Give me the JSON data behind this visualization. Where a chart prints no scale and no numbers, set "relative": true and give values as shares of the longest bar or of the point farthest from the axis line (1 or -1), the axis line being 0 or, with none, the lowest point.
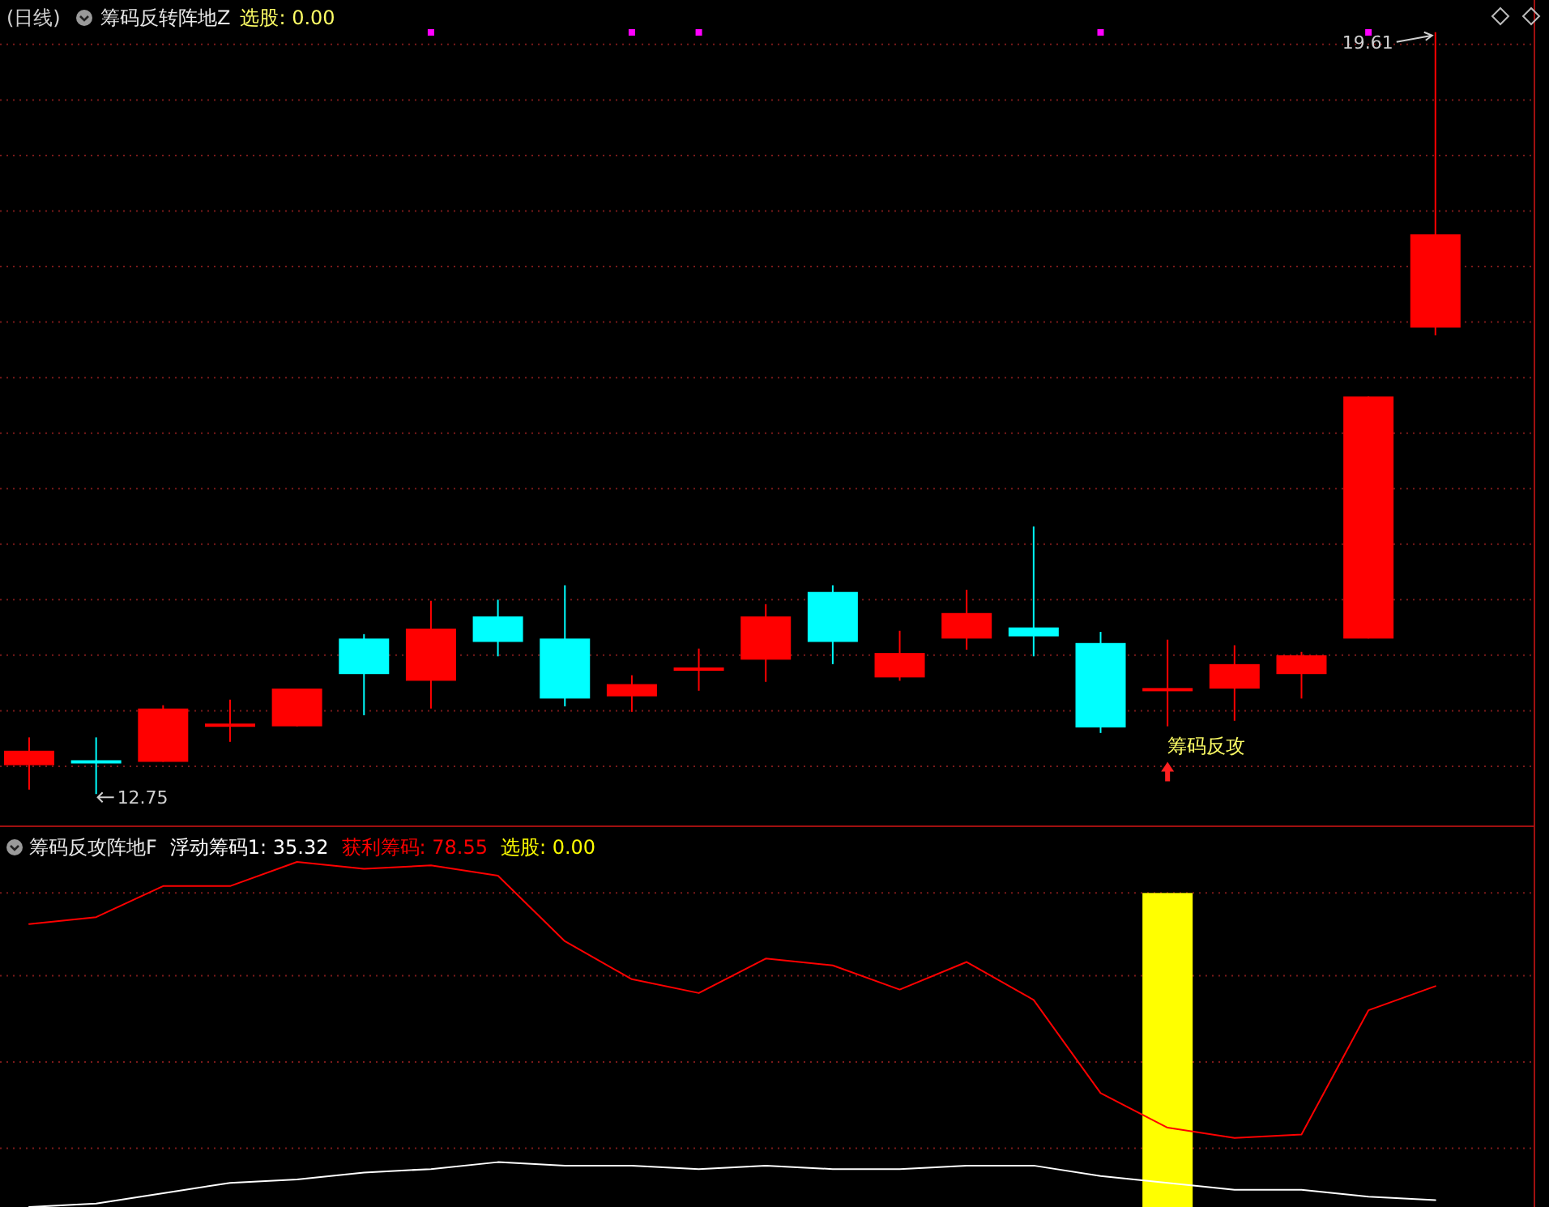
{
  "chart_data": [
    {
      "type": "candlestick",
      "title": "(日线)",
      "subtitle": "筹码反转阵地Z",
      "categories": [
        null,
        null,
        null,
        null,
        null,
        null,
        null,
        null,
        null,
        null,
        null,
        null,
        null,
        null,
        null,
        null,
        null,
        null,
        null,
        null,
        null,
        null
      ],
      "ylim": [
        12.46,
        19.9
      ],
      "yticks": [
        {
          "value": 13,
          "label": null
        },
        {
          "value": 13.5,
          "label": null
        },
        {
          "value": 14,
          "label": null
        },
        {
          "value": 14.5,
          "label": null
        },
        {
          "value": 15,
          "label": null
        },
        {
          "value": 15.5,
          "label": null
        },
        {
          "value": 16,
          "label": null
        },
        {
          "value": 16.5,
          "label": null
        },
        {
          "value": 17,
          "label": null
        },
        {
          "value": 17.5,
          "label": null
        },
        {
          "value": 18,
          "label": null
        },
        {
          "value": 18.5,
          "label": null
        },
        {
          "value": 19,
          "label": null
        },
        {
          "value": 19.5,
          "label": null
        }
      ],
      "grid": "y",
      "ohlc": [
        [
          13.01,
          13.26,
          12.79,
          13.14
        ],
        [
          13.04,
          13.26,
          12.75,
          13.02
        ],
        [
          13.04,
          13.55,
          13.04,
          13.52
        ],
        [
          13.36,
          13.6,
          13.22,
          13.37
        ],
        [
          13.36,
          13.7,
          13.36,
          13.7
        ],
        [
          14.15,
          14.19,
          13.46,
          13.83
        ],
        [
          13.77,
          14.49,
          13.52,
          14.24
        ],
        [
          14.35,
          14.5,
          13.99,
          14.12
        ],
        [
          14.15,
          14.63,
          13.54,
          13.61
        ],
        [
          13.63,
          13.82,
          13.49,
          13.74
        ],
        [
          13.86,
          14.06,
          13.68,
          13.89
        ],
        [
          13.96,
          14.46,
          13.76,
          14.35
        ],
        [
          14.57,
          14.63,
          13.92,
          14.12
        ],
        [
          13.8,
          14.22,
          13.77,
          14.02
        ],
        [
          14.15,
          14.59,
          14.05,
          14.38
        ],
        [
          14.25,
          15.16,
          13.99,
          14.17
        ],
        [
          14.11,
          14.21,
          13.3,
          13.35
        ],
        [
          13.68,
          14.14,
          13.36,
          13.69
        ],
        [
          13.7,
          14.09,
          13.41,
          13.92
        ],
        [
          13.83,
          14.03,
          13.61,
          14
        ],
        [
          14.15,
          16.33,
          14.15,
          16.33
        ],
        [
          16.95,
          19.61,
          16.88,
          17.79
        ]
      ],
      "colors": [
        "#ff0000",
        "#00ffff",
        "#ff0000",
        "#ff0000",
        "#ff0000",
        "#00ffff",
        "#ff0000",
        "#00ffff",
        "#00ffff",
        "#ff0000",
        "#ff0000",
        "#ff0000",
        "#00ffff",
        "#ff0000",
        "#ff0000",
        "#00ffff",
        "#00ffff",
        "#ff0000",
        "#ff0000",
        "#ff0000",
        "#ff0000",
        "#ff0000"
      ],
      "annotations": [
        "选股: 0.00",
        "19.61",
        "12.75",
        "筹码反攻"
      ]
    },
    {
      "type": "line",
      "title": "筹码反攻阵地F",
      "relative": true,
      "ref_lines": [
        {
          "axis": "y",
          "value": 0.17,
          "color": "#7a1a1a",
          "line_style": "dotted"
        },
        {
          "axis": "y",
          "value": 0.42,
          "color": "#7a1a1a",
          "line_style": "dotted"
        },
        {
          "axis": "y",
          "value": 0.67,
          "color": "#7a1a1a",
          "line_style": "dotted"
        },
        {
          "axis": "y",
          "value": 0.91,
          "color": "#7a1a1a",
          "line_style": "dotted"
        }
      ],
      "categories": [
        null,
        null,
        null,
        null,
        null,
        null,
        null,
        null,
        null,
        null,
        null,
        null,
        null,
        null,
        null,
        null,
        null,
        null,
        null,
        null,
        null,
        null
      ],
      "series": [
        {
          "name": "浮动筹码1: 35.32",
          "color": "#ffffff",
          "values": [
            0,
            0.01,
            0.04,
            0.07,
            0.08,
            0.1,
            0.11,
            0.13,
            0.12,
            0.12,
            0.11,
            0.12,
            0.11,
            0.11,
            0.12,
            0.12,
            0.09,
            0.07,
            0.05,
            0.05,
            0.03,
            0.02
          ]
        },
        {
          "name": "获利筹码: 78.55",
          "color": "#ff0000",
          "values": [
            0.82,
            0.84,
            0.93,
            0.93,
            1,
            0.98,
            0.99,
            0.96,
            0.77,
            0.66,
            0.62,
            0.72,
            0.7,
            0.63,
            0.71,
            0.6,
            0.33,
            0.23,
            0.2,
            0.21,
            0.57,
            0.64
          ]
        },
        {
          "name": "选股: 0.00",
          "type": "bar",
          "color": "#ffff00",
          "values": [
            null,
            null,
            null,
            null,
            null,
            null,
            null,
            null,
            null,
            null,
            null,
            null,
            null,
            null,
            null,
            null,
            null,
            0.91,
            null,
            null,
            null,
            null
          ]
        }
      ]
    }
  ]
}
